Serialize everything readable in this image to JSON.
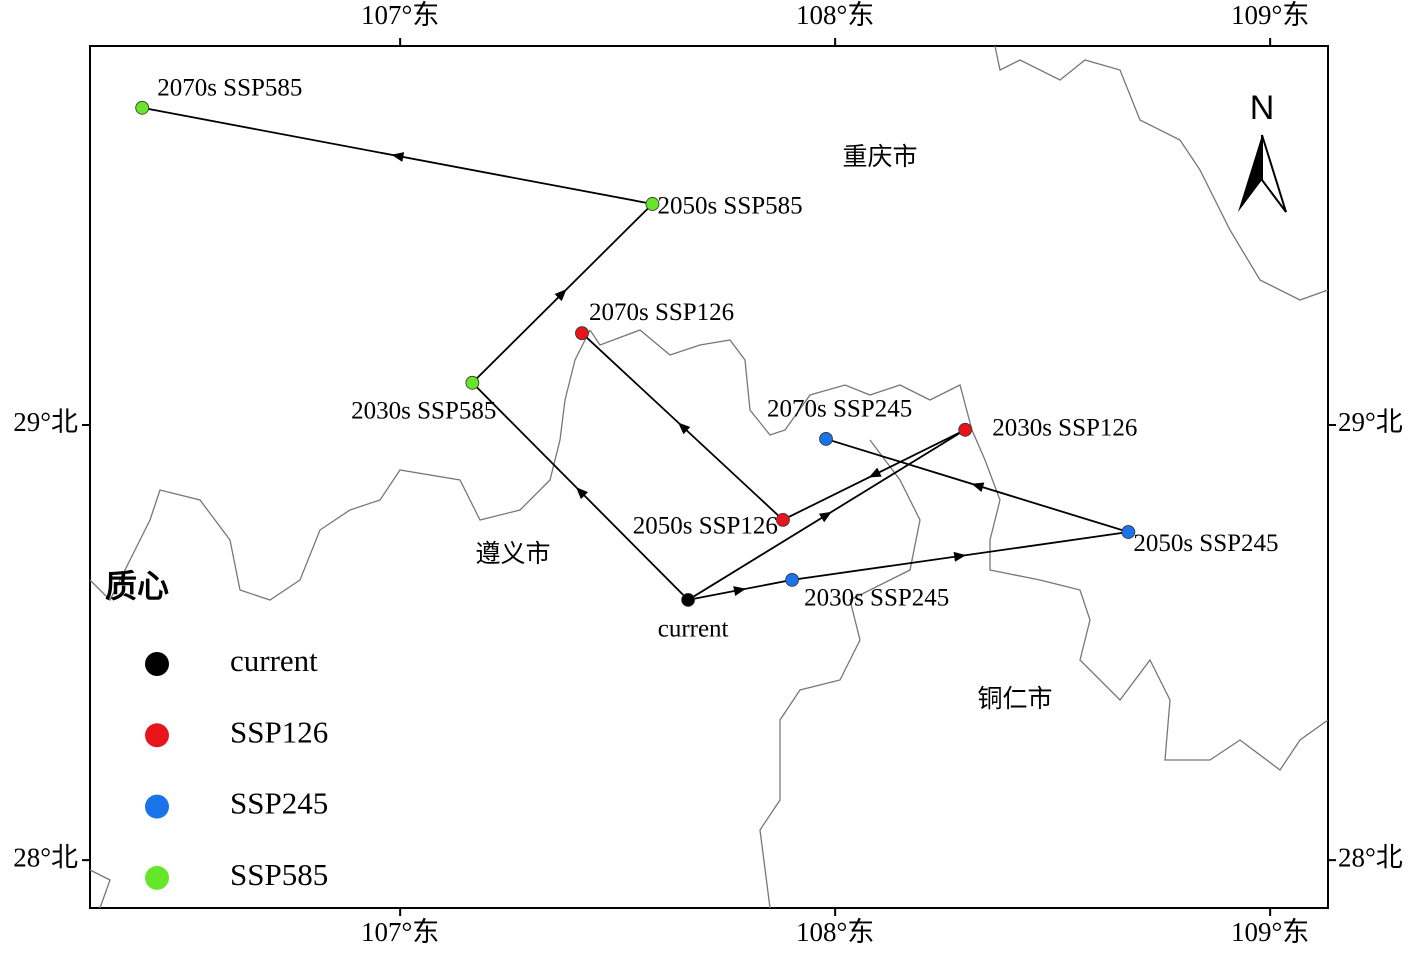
{
  "chart_data": {
    "type": "scatter",
    "xlim": [
      106.287,
      109.133
    ],
    "ylim": [
      27.89,
      29.871
    ],
    "xticks": [
      {
        "value": 107,
        "label": "107°东"
      },
      {
        "value": 108,
        "label": "108°东"
      },
      {
        "value": 109,
        "label": "109°东"
      }
    ],
    "yticks": [
      {
        "value": 28,
        "label": "28°北"
      },
      {
        "value": 29,
        "label": "29°北"
      }
    ],
    "legend_title": "质心",
    "place_names": [
      "重庆市",
      "遵义市",
      "铜仁市"
    ],
    "north": "N",
    "series": [
      {
        "name": "current",
        "color": "#000000",
        "x": [
          107.662
        ],
        "y": [
          28.598
        ],
        "labels": [
          "current"
        ]
      },
      {
        "name": "SSP126",
        "color": "#e8141b",
        "x": [
          108.299,
          107.88,
          107.418
        ],
        "y": [
          28.989,
          28.782,
          29.211
        ],
        "labels": [
          "2030s SSP126",
          "2050s SSP126",
          "2070s SSP126"
        ]
      },
      {
        "name": "SSP245",
        "color": "#1a73e8",
        "x": [
          107.901,
          108.674,
          107.979
        ],
        "y": [
          28.644,
          28.754,
          28.968
        ],
        "labels": [
          "2030s SSP245",
          "2050s SSP245",
          "2070s SSP245"
        ]
      },
      {
        "name": "SSP585",
        "color": "#66e62a",
        "x": [
          107.166,
          107.58,
          106.407
        ],
        "y": [
          29.097,
          29.508,
          29.729
        ],
        "labels": [
          "2030s SSP585",
          "2050s SSP585",
          "2070s SSP585"
        ]
      }
    ]
  }
}
